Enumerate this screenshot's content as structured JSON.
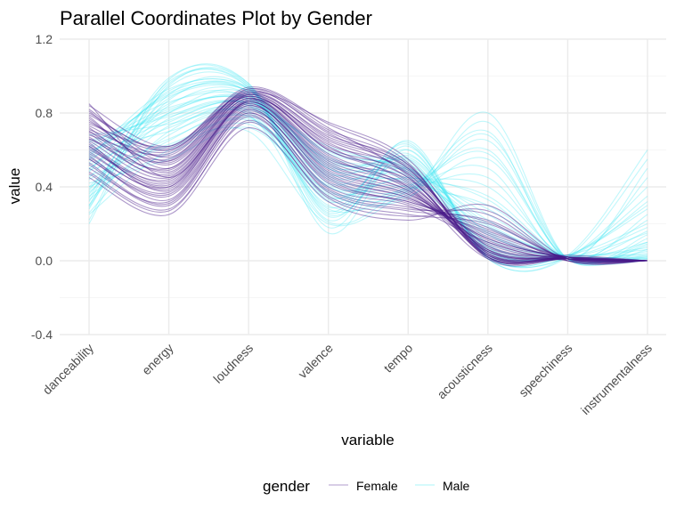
{
  "chart_data": {
    "type": "line",
    "title": "Parallel Coordinates Plot by Gender",
    "xlabel": "variable",
    "ylabel": "value",
    "ylim": [
      -0.4,
      1.2
    ],
    "yticks": [
      "1.2",
      "0.8",
      "0.4",
      "0.0",
      "-0.4"
    ],
    "categories": [
      "danceability",
      "energy",
      "loudness",
      "valence",
      "tempo",
      "acousticness",
      "speechiness",
      "instrumentalness"
    ],
    "grid": true,
    "legend": {
      "title": "gender",
      "placement": "bottom",
      "entries": [
        {
          "label": "Female",
          "color": "#4a1a8a"
        },
        {
          "label": "Male",
          "color": "#3fe6f2"
        }
      ]
    },
    "series": [
      {
        "name": "Female",
        "color": "#4a1a8a",
        "lines": [
          [
            0.62,
            0.42,
            0.86,
            0.52,
            0.38,
            0.05,
            0.01,
            0.0
          ],
          [
            0.7,
            0.55,
            0.9,
            0.6,
            0.45,
            0.02,
            0.02,
            0.0
          ],
          [
            0.55,
            0.35,
            0.8,
            0.4,
            0.3,
            0.1,
            0.0,
            0.0
          ],
          [
            0.8,
            0.6,
            0.92,
            0.7,
            0.5,
            0.03,
            0.01,
            0.0
          ],
          [
            0.48,
            0.28,
            0.75,
            0.35,
            0.25,
            0.2,
            0.01,
            0.0
          ],
          [
            0.66,
            0.5,
            0.88,
            0.58,
            0.4,
            0.01,
            0.02,
            0.0
          ],
          [
            0.74,
            0.62,
            0.91,
            0.75,
            0.55,
            0.04,
            0.01,
            0.0
          ],
          [
            0.58,
            0.4,
            0.85,
            0.45,
            0.33,
            0.15,
            0.02,
            0.0
          ],
          [
            0.85,
            0.45,
            0.87,
            0.65,
            0.48,
            0.08,
            0.01,
            0.0
          ],
          [
            0.52,
            0.3,
            0.78,
            0.38,
            0.28,
            0.25,
            0.0,
            0.0
          ],
          [
            0.68,
            0.58,
            0.89,
            0.62,
            0.42,
            0.06,
            0.01,
            0.0
          ],
          [
            0.6,
            0.44,
            0.84,
            0.5,
            0.36,
            0.12,
            0.02,
            0.0
          ],
          [
            0.77,
            0.52,
            0.9,
            0.68,
            0.52,
            0.02,
            0.01,
            0.0
          ],
          [
            0.45,
            0.25,
            0.72,
            0.32,
            0.22,
            0.3,
            0.01,
            0.0
          ],
          [
            0.72,
            0.48,
            0.88,
            0.55,
            0.44,
            0.05,
            0.02,
            0.0
          ],
          [
            0.64,
            0.38,
            0.86,
            0.48,
            0.35,
            0.1,
            0.01,
            0.0
          ],
          [
            0.82,
            0.56,
            0.93,
            0.72,
            0.46,
            0.03,
            0.01,
            0.0
          ],
          [
            0.57,
            0.33,
            0.82,
            0.42,
            0.32,
            0.18,
            0.0,
            0.0
          ],
          [
            0.69,
            0.46,
            0.87,
            0.57,
            0.39,
            0.07,
            0.02,
            0.0
          ],
          [
            0.75,
            0.6,
            0.91,
            0.66,
            0.5,
            0.04,
            0.01,
            0.0
          ],
          [
            0.5,
            0.32,
            0.79,
            0.37,
            0.27,
            0.22,
            0.01,
            0.0
          ],
          [
            0.66,
            0.54,
            0.89,
            0.6,
            0.43,
            0.03,
            0.03,
            0.0
          ],
          [
            0.61,
            0.41,
            0.85,
            0.47,
            0.34,
            0.13,
            0.01,
            0.0
          ],
          [
            0.78,
            0.5,
            0.9,
            0.63,
            0.49,
            0.06,
            0.01,
            0.0
          ],
          [
            0.55,
            0.36,
            0.81,
            0.44,
            0.31,
            0.16,
            0.02,
            0.0
          ],
          [
            0.73,
            0.57,
            0.92,
            0.69,
            0.47,
            0.02,
            0.01,
            0.0
          ],
          [
            0.63,
            0.43,
            0.86,
            0.51,
            0.37,
            0.09,
            0.01,
            0.0
          ],
          [
            0.84,
            0.62,
            0.94,
            0.74,
            0.53,
            0.01,
            0.01,
            0.0
          ],
          [
            0.47,
            0.27,
            0.76,
            0.34,
            0.24,
            0.27,
            0.0,
            0.0
          ],
          [
            0.7,
            0.49,
            0.88,
            0.56,
            0.41,
            0.08,
            0.02,
            0.0
          ],
          [
            0.67,
            0.47,
            0.87,
            0.54,
            0.4,
            0.06,
            0.01,
            0.0
          ],
          [
            0.59,
            0.39,
            0.83,
            0.46,
            0.34,
            0.14,
            0.01,
            0.0
          ],
          [
            0.81,
            0.54,
            0.91,
            0.67,
            0.51,
            0.03,
            0.02,
            0.0
          ],
          [
            0.53,
            0.31,
            0.8,
            0.39,
            0.29,
            0.21,
            0.01,
            0.0
          ],
          [
            0.71,
            0.59,
            0.9,
            0.64,
            0.45,
            0.04,
            0.01,
            0.0
          ],
          [
            0.65,
            0.45,
            0.86,
            0.53,
            0.38,
            0.11,
            0.02,
            0.0
          ],
          [
            0.76,
            0.53,
            0.89,
            0.61,
            0.47,
            0.05,
            0.01,
            0.0
          ],
          [
            0.56,
            0.37,
            0.82,
            0.43,
            0.32,
            0.17,
            0.01,
            0.0
          ],
          [
            0.79,
            0.61,
            0.93,
            0.71,
            0.52,
            0.02,
            0.01,
            0.0
          ],
          [
            0.62,
            0.4,
            0.84,
            0.49,
            0.36,
            0.12,
            0.02,
            0.0
          ]
        ]
      },
      {
        "name": "Male",
        "color": "#3fe6f2",
        "lines": [
          [
            0.5,
            0.75,
            0.85,
            0.45,
            0.4,
            0.3,
            0.02,
            0.05
          ],
          [
            0.4,
            0.8,
            0.9,
            0.35,
            0.5,
            0.15,
            0.01,
            0.1
          ],
          [
            0.3,
            0.9,
            0.93,
            0.25,
            0.55,
            0.05,
            0.02,
            0.02
          ],
          [
            0.6,
            0.7,
            0.82,
            0.55,
            0.45,
            0.4,
            0.01,
            0.0
          ],
          [
            0.2,
            0.95,
            0.95,
            0.15,
            0.6,
            0.02,
            0.03,
            0.3
          ],
          [
            0.45,
            0.85,
            0.88,
            0.4,
            0.42,
            0.1,
            0.02,
            0.15
          ],
          [
            0.35,
            0.65,
            0.78,
            0.3,
            0.35,
            0.55,
            0.01,
            0.08
          ],
          [
            0.55,
            0.9,
            0.92,
            0.5,
            0.48,
            0.08,
            0.02,
            0.01
          ],
          [
            0.25,
            0.6,
            0.7,
            0.2,
            0.38,
            0.7,
            0.01,
            0.5
          ],
          [
            0.65,
            0.78,
            0.86,
            0.6,
            0.52,
            0.2,
            0.02,
            0.0
          ],
          [
            0.38,
            0.88,
            0.91,
            0.32,
            0.58,
            0.06,
            0.03,
            0.2
          ],
          [
            0.52,
            0.72,
            0.84,
            0.48,
            0.44,
            0.35,
            0.01,
            0.03
          ],
          [
            0.28,
            0.96,
            0.94,
            0.22,
            0.62,
            0.03,
            0.02,
            0.4
          ],
          [
            0.58,
            0.82,
            0.87,
            0.52,
            0.46,
            0.18,
            0.02,
            0.0
          ],
          [
            0.42,
            0.55,
            0.72,
            0.38,
            0.36,
            0.8,
            0.01,
            0.12
          ],
          [
            0.48,
            0.92,
            0.93,
            0.42,
            0.54,
            0.04,
            0.02,
            0.06
          ],
          [
            0.33,
            0.68,
            0.8,
            0.28,
            0.4,
            0.6,
            0.01,
            0.25
          ],
          [
            0.62,
            0.86,
            0.89,
            0.58,
            0.5,
            0.12,
            0.02,
            0.01
          ],
          [
            0.22,
            0.98,
            0.96,
            0.18,
            0.65,
            0.01,
            0.03,
            0.6
          ],
          [
            0.55,
            0.76,
            0.85,
            0.5,
            0.43,
            0.28,
            0.01,
            0.02
          ],
          [
            0.36,
            0.84,
            0.9,
            0.34,
            0.56,
            0.09,
            0.02,
            0.18
          ],
          [
            0.46,
            0.62,
            0.76,
            0.4,
            0.37,
            0.65,
            0.01,
            0.09
          ],
          [
            0.68,
            0.74,
            0.83,
            0.62,
            0.49,
            0.25,
            0.02,
            0.0
          ],
          [
            0.3,
            0.94,
            0.94,
            0.26,
            0.6,
            0.02,
            0.02,
            0.35
          ],
          [
            0.5,
            0.8,
            0.88,
            0.46,
            0.47,
            0.16,
            0.01,
            0.04
          ],
          [
            0.4,
            0.58,
            0.74,
            0.36,
            0.34,
            0.75,
            0.01,
            0.14
          ],
          [
            0.57,
            0.89,
            0.92,
            0.53,
            0.51,
            0.07,
            0.02,
            0.02
          ],
          [
            0.26,
            0.7,
            0.79,
            0.21,
            0.39,
            0.5,
            0.01,
            0.45
          ],
          [
            0.61,
            0.83,
            0.87,
            0.56,
            0.48,
            0.14,
            0.02,
            0.01
          ],
          [
            0.34,
            0.97,
            0.95,
            0.29,
            0.63,
            0.02,
            0.03,
            0.28
          ],
          [
            0.44,
            0.66,
            0.78,
            0.41,
            0.41,
            0.58,
            0.01,
            0.1
          ],
          [
            0.53,
            0.91,
            0.93,
            0.47,
            0.55,
            0.05,
            0.02,
            0.07
          ],
          [
            0.37,
            0.73,
            0.81,
            0.33,
            0.39,
            0.45,
            0.01,
            0.22
          ],
          [
            0.64,
            0.79,
            0.86,
            0.59,
            0.5,
            0.22,
            0.02,
            0.0
          ],
          [
            0.29,
            0.87,
            0.91,
            0.24,
            0.57,
            0.07,
            0.02,
            0.32
          ],
          [
            0.49,
            0.63,
            0.77,
            0.44,
            0.38,
            0.68,
            0.01,
            0.06
          ],
          [
            0.56,
            0.93,
            0.94,
            0.51,
            0.53,
            0.03,
            0.03,
            0.03
          ],
          [
            0.39,
            0.77,
            0.84,
            0.37,
            0.45,
            0.33,
            0.01,
            0.16
          ],
          [
            0.59,
            0.81,
            0.88,
            0.54,
            0.49,
            0.19,
            0.02,
            0.01
          ],
          [
            0.32,
            0.99,
            0.96,
            0.27,
            0.64,
            0.01,
            0.02,
            0.55
          ]
        ]
      }
    ]
  }
}
